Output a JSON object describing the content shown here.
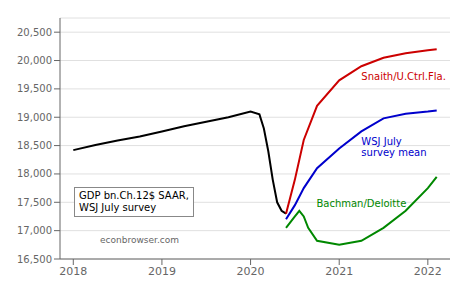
{
  "chart_data": {
    "type": "line",
    "annotations": [
      "GDP bn.Ch.12$ SAAR,\nWSJ July survey",
      "econbrowser.com"
    ],
    "xlim": [
      2017.85,
      2022.25
    ],
    "xticks": [
      2018,
      2019,
      2020,
      2021,
      2022
    ],
    "ylim": [
      16500,
      20750
    ],
    "yticks": [
      {
        "value": 16500,
        "label": "16,500"
      },
      {
        "value": 17000,
        "label": "17,000"
      },
      {
        "value": 17500,
        "label": "17,500"
      },
      {
        "value": 18000,
        "label": "18,000"
      },
      {
        "value": 18500,
        "label": "18,500"
      },
      {
        "value": 19000,
        "label": "19,000"
      },
      {
        "value": 19500,
        "label": "19,500"
      },
      {
        "value": 20000,
        "label": "20,000"
      },
      {
        "value": 20500,
        "label": "20,500"
      }
    ],
    "grid": "y",
    "series": [
      {
        "color": "#000000",
        "x": [
          2018.0,
          2018.25,
          2018.5,
          2018.75,
          2019.0,
          2019.25,
          2019.5,
          2019.75,
          2020.0,
          2020.1,
          2020.15,
          2020.2,
          2020.25,
          2020.3,
          2020.35,
          2020.4
        ],
        "values": [
          18420,
          18510,
          18590,
          18660,
          18750,
          18840,
          18920,
          19000,
          19100,
          19050,
          18800,
          18400,
          17900,
          17500,
          17350,
          17300
        ]
      },
      {
        "name": "Snaith/U.Ctrl.Fla.",
        "color": "#cc0000",
        "x": [
          2020.4,
          2020.5,
          2020.6,
          2020.75,
          2021.0,
          2021.25,
          2021.5,
          2021.75,
          2022.0,
          2022.1
        ],
        "values": [
          17300,
          17900,
          18600,
          19200,
          19650,
          19900,
          20050,
          20130,
          20180,
          20200
        ]
      },
      {
        "name": "WSJ July\nsurvey mean",
        "color": "#0000cc",
        "x": [
          2020.4,
          2020.5,
          2020.6,
          2020.75,
          2021.0,
          2021.25,
          2021.5,
          2021.75,
          2022.0,
          2022.1
        ],
        "values": [
          17200,
          17450,
          17750,
          18100,
          18450,
          18750,
          18980,
          19060,
          19100,
          19120
        ]
      },
      {
        "name": "Bachman/Deloitte",
        "color": "#008800",
        "x": [
          2020.4,
          2020.5,
          2020.55,
          2020.6,
          2020.65,
          2020.75,
          2021.0,
          2021.25,
          2021.5,
          2021.75,
          2022.0,
          2022.1
        ],
        "values": [
          17050,
          17250,
          17350,
          17250,
          17050,
          16820,
          16750,
          16820,
          17050,
          17350,
          17750,
          17950
        ]
      }
    ]
  }
}
